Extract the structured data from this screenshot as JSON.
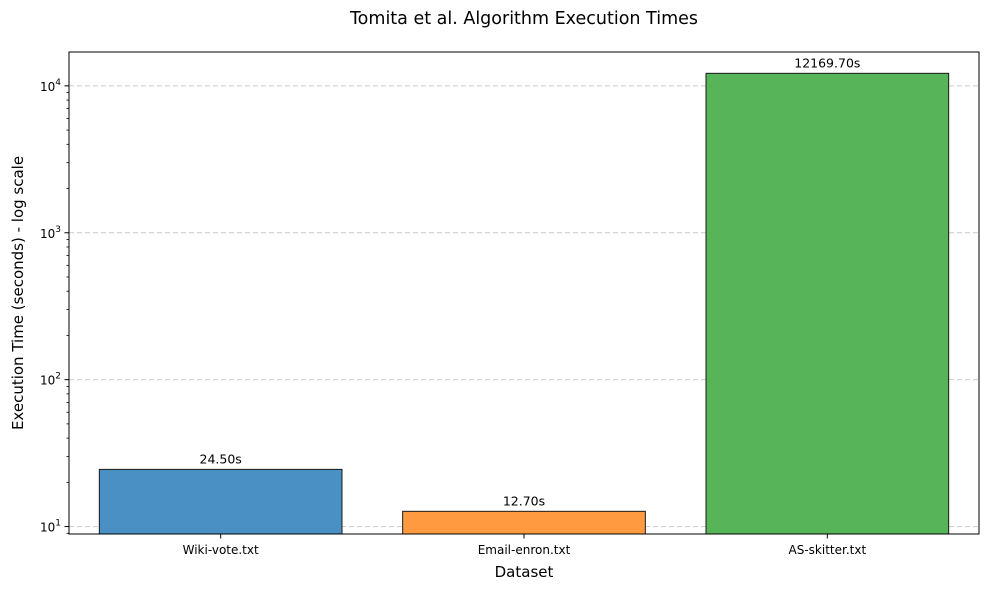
{
  "chart_data": {
    "type": "bar",
    "title": "Tomita et al. Algorithm Execution Times",
    "xlabel": "Dataset",
    "ylabel": "Execution Time (seconds) - log scale",
    "yscale": "log",
    "ylim": [
      8.9,
      17000
    ],
    "yticks": [
      {
        "value": 10,
        "base": "10",
        "exp": "1"
      },
      {
        "value": 100,
        "base": "10",
        "exp": "2"
      },
      {
        "value": 1000,
        "base": "10",
        "exp": "3"
      },
      {
        "value": 10000,
        "base": "10",
        "exp": "4"
      }
    ],
    "grid": {
      "axis": "y",
      "style": "dashed",
      "color": "#cccccc"
    },
    "categories": [
      "Wiki-vote.txt",
      "Email-enron.txt",
      "AS-skitter.txt"
    ],
    "values": [
      24.5,
      12.7,
      12169.7
    ],
    "labels": [
      "24.50s",
      "12.70s",
      "12169.70s"
    ],
    "colors": [
      "#4a90c4",
      "#ff9a40",
      "#58b458"
    ],
    "edge_color": "#1a1a1a"
  }
}
